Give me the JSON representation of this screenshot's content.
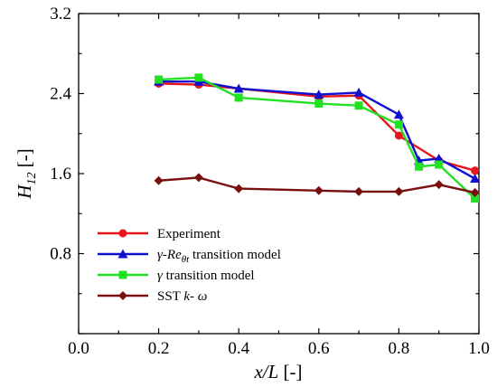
{
  "chart_data": {
    "type": "line",
    "xlabel": {
      "var_italic": "x/L",
      "unit": " [-]"
    },
    "ylabel": {
      "var_italic": "H",
      "sub": "12",
      "unit": " [-]"
    },
    "xlim": [
      0.0,
      1.0
    ],
    "ylim": [
      0.0,
      3.2
    ],
    "xticks": [
      0.0,
      0.2,
      0.4,
      0.6,
      0.8,
      1.0
    ],
    "xtick_labels": [
      "0.0",
      "0.2",
      "0.4",
      "0.6",
      "0.8",
      "1.0"
    ],
    "yticks": [
      0.8,
      1.6,
      2.4,
      3.2
    ],
    "ytick_labels": [
      "0.8",
      "1.6",
      "2.4",
      "3.2"
    ],
    "grid": false,
    "legend_position": "bottom-left",
    "series": [
      {
        "name": "Experiment",
        "legend": [
          {
            "t": "Experiment"
          }
        ],
        "color": "#e8151b",
        "marker": "circle",
        "x": [
          0.2,
          0.3,
          0.6,
          0.7,
          0.8,
          0.9,
          0.99
        ],
        "y": [
          2.5,
          2.49,
          2.37,
          2.38,
          1.98,
          1.73,
          1.63
        ]
      },
      {
        "name": "γ-Reθt transition model",
        "legend": [
          {
            "t": "γ-Re",
            "i": true
          },
          {
            "t": "θt",
            "i": true,
            "sub": true
          },
          {
            "t": " transition model"
          }
        ],
        "color": "#1010d0",
        "marker": "triangle",
        "x": [
          0.2,
          0.3,
          0.4,
          0.6,
          0.7,
          0.8,
          0.85,
          0.9,
          0.99
        ],
        "y": [
          2.52,
          2.52,
          2.45,
          2.39,
          2.41,
          2.19,
          1.73,
          1.75,
          1.55
        ]
      },
      {
        "name": "γ transition model",
        "legend": [
          {
            "t": "γ",
            "i": true
          },
          {
            "t": " transition model"
          }
        ],
        "color": "#22e022",
        "marker": "square",
        "x": [
          0.2,
          0.3,
          0.4,
          0.6,
          0.7,
          0.8,
          0.85,
          0.9,
          0.99
        ],
        "y": [
          2.54,
          2.56,
          2.36,
          2.3,
          2.28,
          2.09,
          1.67,
          1.69,
          1.35
        ]
      },
      {
        "name": "SST k- ω",
        "legend": [
          {
            "t": "SST "
          },
          {
            "t": "k",
            "i": true
          },
          {
            "t": "- "
          },
          {
            "t": "ω",
            "i": true
          }
        ],
        "color": "#7a0f0f",
        "marker": "diamond",
        "x": [
          0.2,
          0.3,
          0.4,
          0.6,
          0.7,
          0.8,
          0.9,
          0.99
        ],
        "y": [
          1.53,
          1.56,
          1.45,
          1.43,
          1.42,
          1.42,
          1.49,
          1.41
        ]
      }
    ]
  }
}
